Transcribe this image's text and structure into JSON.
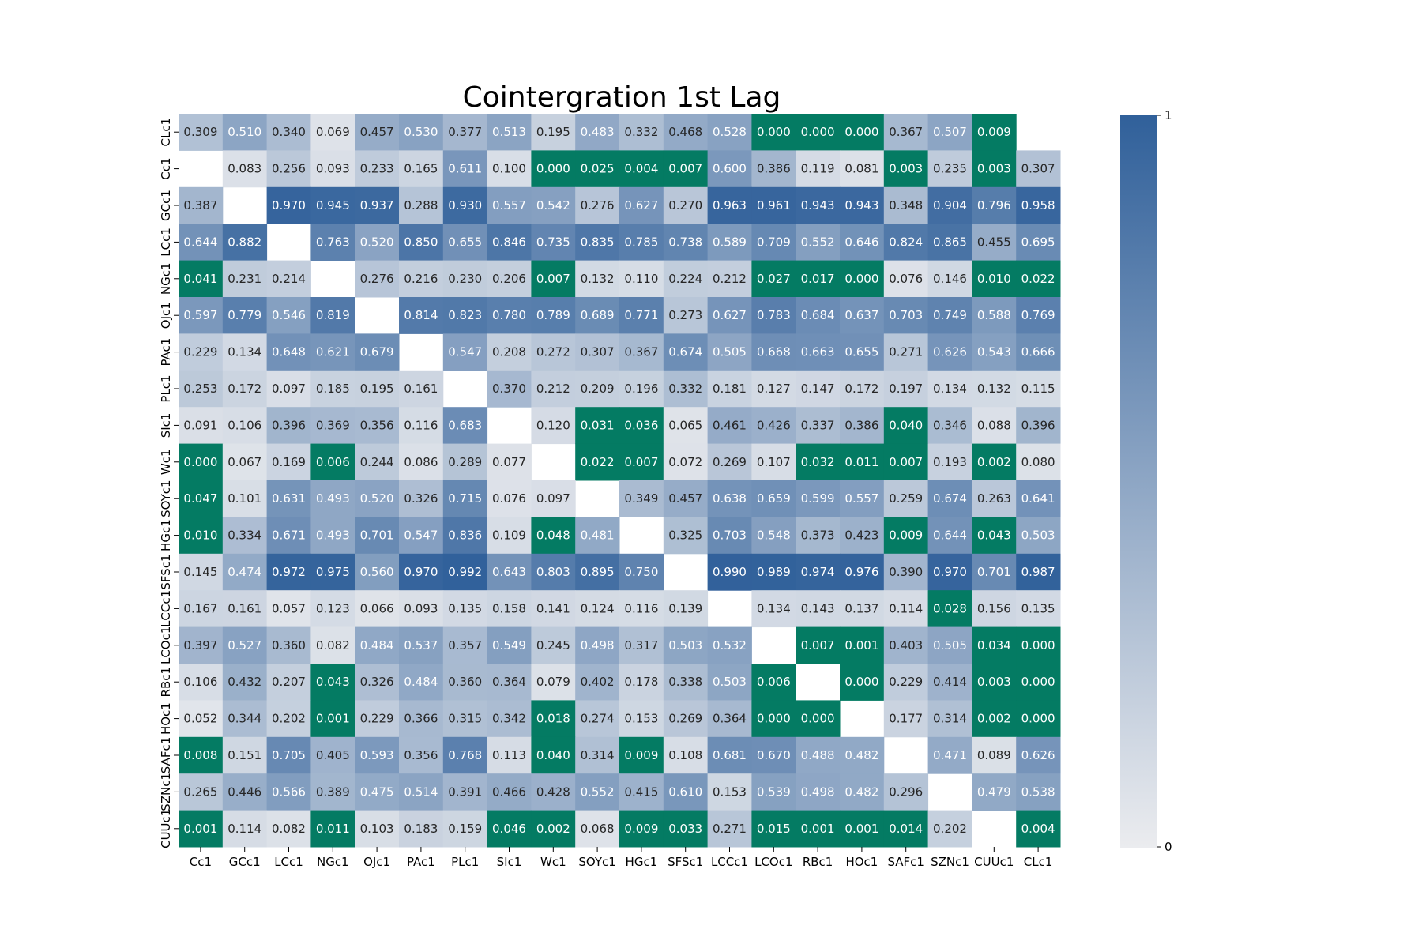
{
  "chart_data": {
    "type": "heatmap",
    "title": "Cointergration 1st Lag",
    "xlabel": "",
    "ylabel": "",
    "x_categories": [
      "Cc1",
      "GCc1",
      "LCc1",
      "NGc1",
      "OJc1",
      "PAc1",
      "PLc1",
      "SIc1",
      "Wc1",
      "SOYc1",
      "HGc1",
      "SFSc1",
      "LCCc1",
      "LCOc1",
      "RBc1",
      "HOc1",
      "SAFc1",
      "SZNc1",
      "CUUc1",
      "CLc1"
    ],
    "y_categories": [
      "CLc1",
      "Cc1",
      "GCc1",
      "LCc1",
      "NGc1",
      "OJc1",
      "PAc1",
      "PLc1",
      "SIc1",
      "Wc1",
      "SOYc1",
      "HGc1",
      "SFSc1",
      "LCCc1",
      "LCOc1",
      "RBc1",
      "HOc1",
      "SAFc1",
      "SZNc1",
      "CUUc1"
    ],
    "values": [
      [
        0.309,
        0.51,
        0.34,
        0.069,
        0.457,
        0.53,
        0.377,
        0.513,
        0.195,
        0.483,
        0.332,
        0.468,
        0.528,
        0.0,
        0.0,
        0.0,
        0.367,
        0.507,
        0.009,
        null
      ],
      [
        null,
        0.083,
        0.256,
        0.093,
        0.233,
        0.165,
        0.611,
        0.1,
        0.0,
        0.025,
        0.004,
        0.007,
        0.6,
        0.386,
        0.119,
        0.081,
        0.003,
        0.235,
        0.003,
        0.307
      ],
      [
        0.387,
        null,
        0.97,
        0.945,
        0.937,
        0.288,
        0.93,
        0.557,
        0.542,
        0.276,
        0.627,
        0.27,
        0.963,
        0.961,
        0.943,
        0.943,
        0.348,
        0.904,
        0.796,
        0.958
      ],
      [
        0.644,
        0.882,
        null,
        0.763,
        0.52,
        0.85,
        0.655,
        0.846,
        0.735,
        0.835,
        0.785,
        0.738,
        0.589,
        0.709,
        0.552,
        0.646,
        0.824,
        0.865,
        0.455,
        0.695
      ],
      [
        0.041,
        0.231,
        0.214,
        null,
        0.276,
        0.216,
        0.23,
        0.206,
        0.007,
        0.132,
        0.11,
        0.224,
        0.212,
        0.027,
        0.017,
        0.0,
        0.076,
        0.146,
        0.01,
        0.022
      ],
      [
        0.597,
        0.779,
        0.546,
        0.819,
        null,
        0.814,
        0.823,
        0.78,
        0.789,
        0.689,
        0.771,
        0.273,
        0.627,
        0.783,
        0.684,
        0.637,
        0.703,
        0.749,
        0.588,
        0.769
      ],
      [
        0.229,
        0.134,
        0.648,
        0.621,
        0.679,
        null,
        0.547,
        0.208,
        0.272,
        0.307,
        0.367,
        0.674,
        0.505,
        0.668,
        0.663,
        0.655,
        0.271,
        0.626,
        0.543,
        0.666
      ],
      [
        0.253,
        0.172,
        0.097,
        0.185,
        0.195,
        0.161,
        null,
        0.37,
        0.212,
        0.209,
        0.196,
        0.332,
        0.181,
        0.127,
        0.147,
        0.172,
        0.197,
        0.134,
        0.132,
        0.115
      ],
      [
        0.091,
        0.106,
        0.396,
        0.369,
        0.356,
        0.116,
        0.683,
        null,
        0.12,
        0.031,
        0.036,
        0.065,
        0.461,
        0.426,
        0.337,
        0.386,
        0.04,
        0.346,
        0.088,
        0.396
      ],
      [
        0.0,
        0.067,
        0.169,
        0.006,
        0.244,
        0.086,
        0.289,
        0.077,
        null,
        0.022,
        0.007,
        0.072,
        0.269,
        0.107,
        0.032,
        0.011,
        0.007,
        0.193,
        0.002,
        0.08
      ],
      [
        0.047,
        0.101,
        0.631,
        0.493,
        0.52,
        0.326,
        0.715,
        0.076,
        0.097,
        null,
        0.349,
        0.457,
        0.638,
        0.659,
        0.599,
        0.557,
        0.259,
        0.674,
        0.263,
        0.641
      ],
      [
        0.01,
        0.334,
        0.671,
        0.493,
        0.701,
        0.547,
        0.836,
        0.109,
        0.048,
        0.481,
        null,
        0.325,
        0.703,
        0.548,
        0.373,
        0.423,
        0.009,
        0.644,
        0.043,
        0.503
      ],
      [
        0.145,
        0.474,
        0.972,
        0.975,
        0.56,
        0.97,
        0.992,
        0.643,
        0.803,
        0.895,
        0.75,
        null,
        0.99,
        0.989,
        0.974,
        0.976,
        0.39,
        0.97,
        0.701,
        0.987
      ],
      [
        0.167,
        0.161,
        0.057,
        0.123,
        0.066,
        0.093,
        0.135,
        0.158,
        0.141,
        0.124,
        0.116,
        0.139,
        null,
        0.134,
        0.143,
        0.137,
        0.114,
        0.028,
        0.156,
        0.135
      ],
      [
        0.397,
        0.527,
        0.36,
        0.082,
        0.484,
        0.537,
        0.357,
        0.549,
        0.245,
        0.498,
        0.317,
        0.503,
        0.532,
        null,
        0.007,
        0.001,
        0.403,
        0.505,
        0.034,
        0.0
      ],
      [
        0.106,
        0.432,
        0.207,
        0.043,
        0.326,
        0.484,
        0.36,
        0.364,
        0.079,
        0.402,
        0.178,
        0.338,
        0.503,
        0.006,
        null,
        0.0,
        0.229,
        0.414,
        0.003,
        0.0
      ],
      [
        0.052,
        0.344,
        0.202,
        0.001,
        0.229,
        0.366,
        0.315,
        0.342,
        0.018,
        0.274,
        0.153,
        0.269,
        0.364,
        0.0,
        0.0,
        null,
        0.177,
        0.314,
        0.002,
        0.0
      ],
      [
        0.008,
        0.151,
        0.705,
        0.405,
        0.593,
        0.356,
        0.768,
        0.113,
        0.04,
        0.314,
        0.009,
        0.108,
        0.681,
        0.67,
        0.488,
        0.482,
        null,
        0.471,
        0.089,
        0.626
      ],
      [
        0.265,
        0.446,
        0.566,
        0.389,
        0.475,
        0.514,
        0.391,
        0.466,
        0.428,
        0.552,
        0.415,
        0.61,
        0.153,
        0.539,
        0.498,
        0.482,
        0.296,
        null,
        0.479,
        0.538
      ],
      [
        0.001,
        0.114,
        0.082,
        0.011,
        0.103,
        0.183,
        0.159,
        0.046,
        0.002,
        0.068,
        0.009,
        0.033,
        0.271,
        0.015,
        0.001,
        0.001,
        0.014,
        0.202,
        null,
        0.004
      ]
    ],
    "value_range": [
      0,
      1
    ],
    "significance_threshold": 0.05,
    "colorbar": {
      "min_label": "0",
      "max_label": "1"
    },
    "colors": {
      "low": "#ebecef",
      "high": "#30609a",
      "significant": "#047b63"
    }
  }
}
